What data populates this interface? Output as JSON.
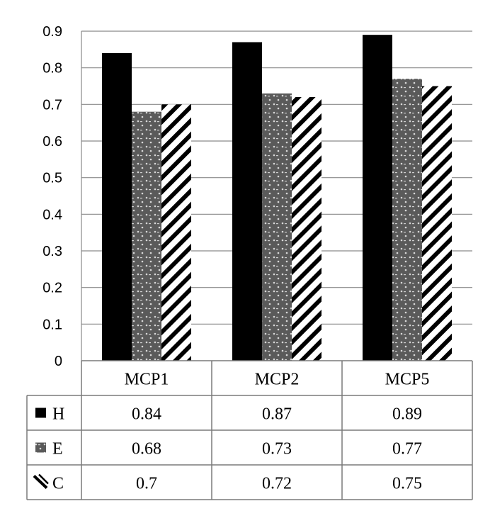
{
  "chart_data": {
    "type": "bar",
    "categories": [
      "MCP1",
      "MCP2",
      "MCP5"
    ],
    "series": [
      {
        "name": "H",
        "values": [
          0.84,
          0.87,
          0.89
        ],
        "pattern": "solid",
        "color": "#000000"
      },
      {
        "name": "E",
        "values": [
          0.68,
          0.73,
          0.77
        ],
        "pattern": "dotted",
        "color": "#5a5a5a"
      },
      {
        "name": "C",
        "values": [
          0.7,
          0.72,
          0.75
        ],
        "pattern": "diagonal-stripes",
        "color": "#000000"
      }
    ],
    "value_labels": [
      [
        "0.84",
        "0.87",
        "0.89"
      ],
      [
        "0.68",
        "0.73",
        "0.77"
      ],
      [
        "0.7",
        "0.72",
        "0.75"
      ]
    ],
    "y_ticks": [
      "0",
      "0.1",
      "0.2",
      "0.3",
      "0.4",
      "0.5",
      "0.6",
      "0.7",
      "0.8",
      "0.9"
    ],
    "ylim": [
      0,
      0.9
    ],
    "grid": true,
    "data_table": true,
    "title": "",
    "xlabel": "",
    "ylabel": ""
  }
}
